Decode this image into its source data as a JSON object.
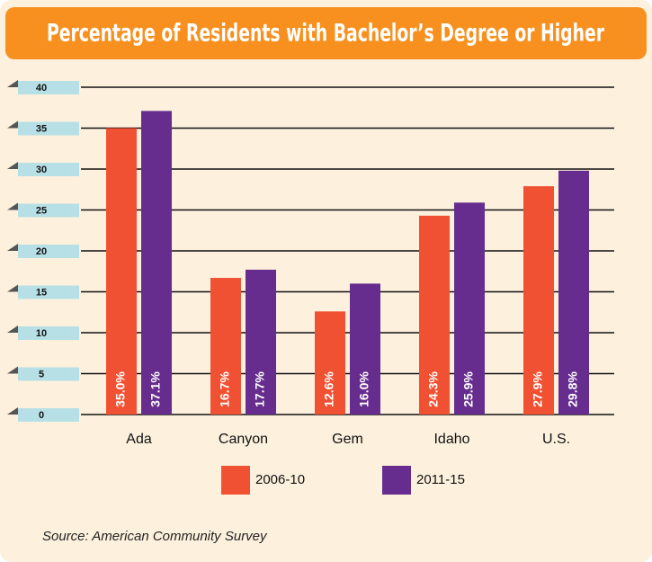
{
  "chart_data": {
    "type": "bar",
    "title": "Percentage of Residents with Bachelor’s Degree or Higher",
    "categories": [
      "Ada",
      "Canyon",
      "Gem",
      "Idaho",
      "U.S."
    ],
    "series": [
      {
        "name": "2006-10",
        "color": "#f05133",
        "values": [
          35.0,
          16.7,
          12.6,
          24.3,
          27.9
        ],
        "value_labels": [
          "35.0%",
          "16.7%",
          "12.6%",
          "24.3%",
          "27.9%"
        ]
      },
      {
        "name": "2011-15",
        "color": "#662d8e",
        "values": [
          37.1,
          17.7,
          16.0,
          25.9,
          29.8
        ],
        "value_labels": [
          "37.1%",
          "17.7%",
          "16.0%",
          "25.9%",
          "29.8%"
        ]
      }
    ],
    "ylim": [
      0,
      40
    ],
    "yticks": [
      0,
      5,
      10,
      15,
      20,
      25,
      30,
      35,
      40
    ],
    "grid": true,
    "source": "Source: American Community Survey"
  }
}
